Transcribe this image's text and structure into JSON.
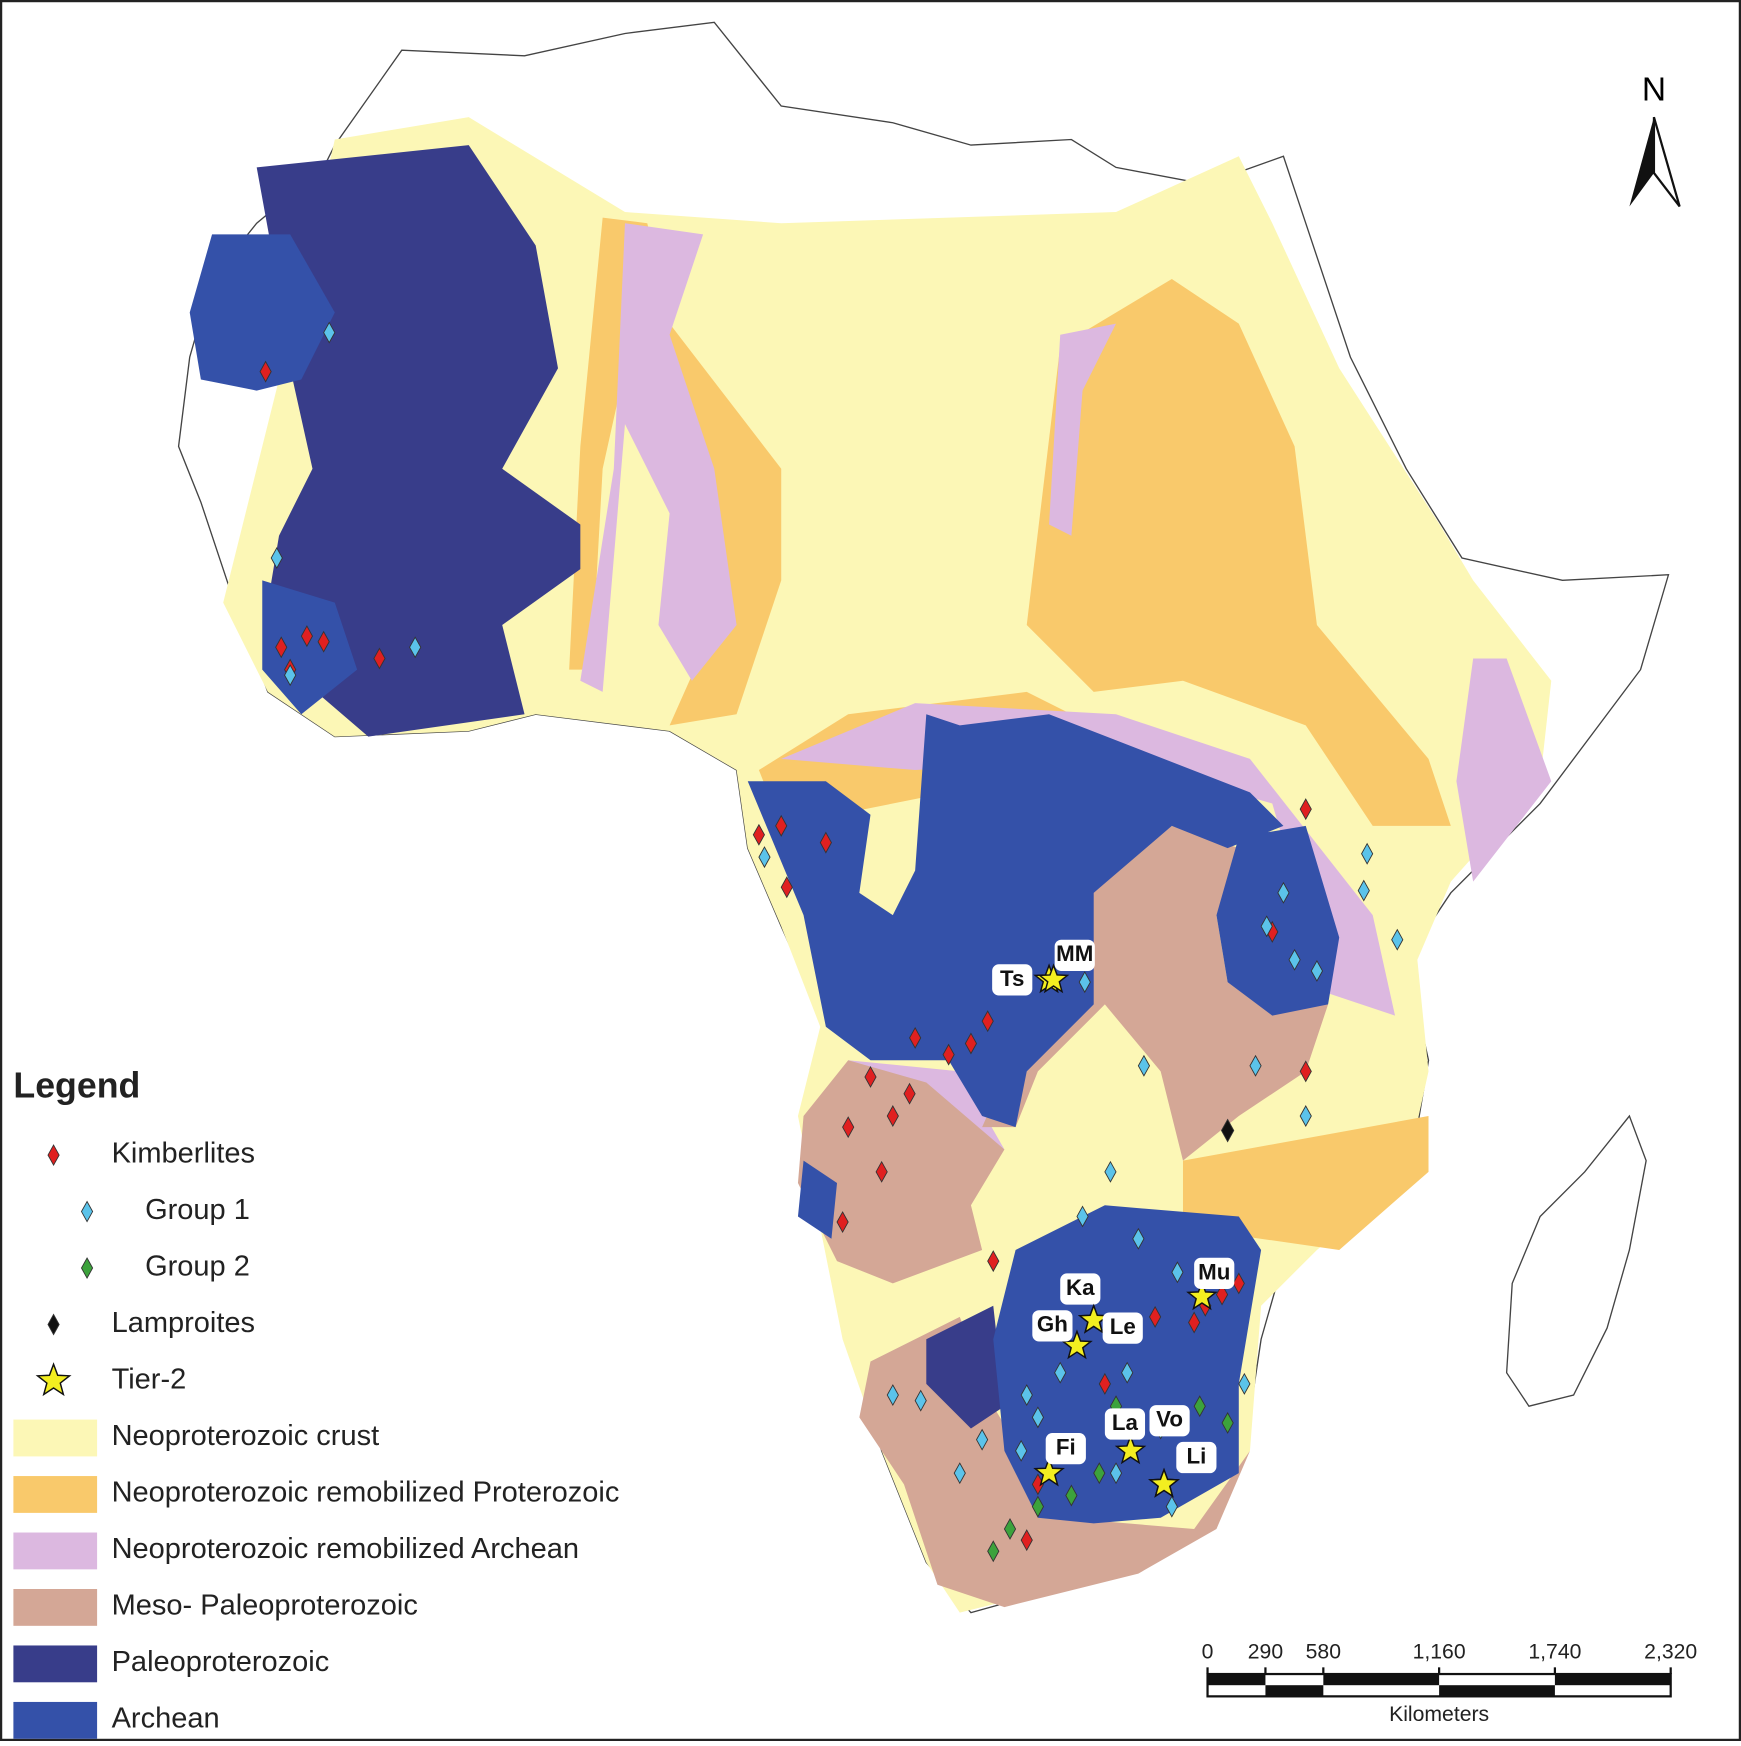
{
  "legend": {
    "title": "Legend",
    "items": [
      "Kimberlites",
      "Group 1",
      "Group 2",
      "Lamproites",
      "Tier-2",
      "Neoproterozoic crust",
      "Neoproterozoic remobilized Proterozoic",
      "Neoproterozoic remobilized Archean",
      "Meso- Paleoproterozoic",
      "Paleoproterozoic",
      "Archean"
    ]
  },
  "north": "N",
  "sites": [
    "Ts",
    "MM",
    "Ka",
    "Mu",
    "Gh",
    "Le",
    "La",
    "Vo",
    "Fi",
    "Li"
  ],
  "scale_bar": {
    "ticks": [
      0,
      290,
      580,
      {
        "value": 1160,
        "label": "1,160"
      },
      {
        "value": 1740,
        "label": "1,740"
      },
      {
        "value": 2320,
        "label": "2,320"
      }
    ],
    "unit": "Kilometers"
  }
}
